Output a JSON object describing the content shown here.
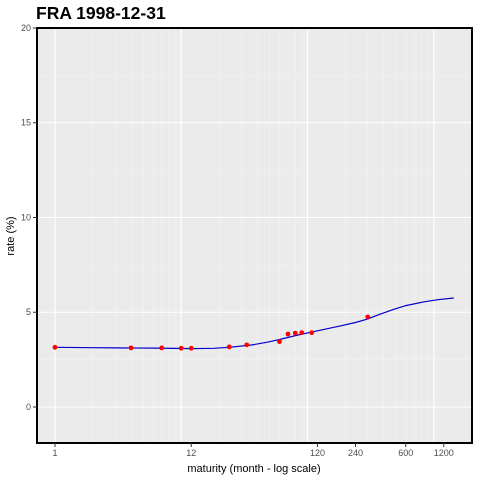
{
  "chart_data": {
    "type": "line",
    "title": "FRA 1998-12-31",
    "xlabel": "maturity (month - log scale)",
    "ylabel": "rate (%)",
    "xscale": "log",
    "xlim": [
      1,
      1500
    ],
    "ylim": [
      -1.9,
      20
    ],
    "grid": true,
    "x_ticks": [
      1,
      12,
      120,
      240,
      600,
      1200
    ],
    "y_ticks": [
      0,
      5,
      10,
      15,
      20
    ],
    "series": [
      {
        "role": "fitted curve",
        "color": "#0000cc",
        "x": [
          1,
          2,
          3,
          6,
          9,
          12,
          18,
          24,
          36,
          48,
          60,
          84,
          120,
          180,
          240,
          300,
          360,
          480,
          600,
          840,
          1080,
          1440
        ],
        "y": [
          3.15,
          3.13,
          3.12,
          3.11,
          3.09,
          3.08,
          3.1,
          3.15,
          3.27,
          3.42,
          3.56,
          3.8,
          4.02,
          4.27,
          4.46,
          4.65,
          4.85,
          5.15,
          5.35,
          5.55,
          5.66,
          5.75
        ]
      },
      {
        "role": "observed points",
        "color": "#ff0000",
        "x": [
          1,
          4,
          7,
          10,
          12,
          24,
          33,
          60,
          70,
          80,
          90,
          108,
          300
        ],
        "y": [
          3.15,
          3.12,
          3.12,
          3.1,
          3.1,
          3.17,
          3.28,
          3.45,
          3.85,
          3.9,
          3.92,
          3.92,
          4.75
        ]
      }
    ]
  }
}
